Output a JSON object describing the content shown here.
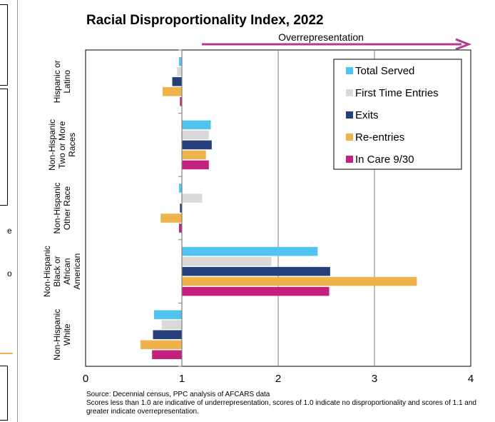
{
  "chart_data": {
    "type": "bar",
    "orientation": "horizontal",
    "title": "Racial Disproportionality Index, 2022",
    "annotation": "Overrepresentation",
    "categories": [
      "Hispanic or Latino",
      "Non-Hispanic Two or More Races",
      "Non-Hispanic Other Race",
      "Non-Hispanic Black or African American",
      "Non-Hispanic White"
    ],
    "category_lines": [
      [
        "Hispanic or",
        "Latino"
      ],
      [
        "Non-Hispanic",
        "Two or More",
        "Races"
      ],
      [
        "Non-Hispanic",
        "Other Race"
      ],
      [
        "Non-Hispanic",
        "Black or",
        "African",
        "American"
      ],
      [
        "Non-Hispanic",
        "White"
      ]
    ],
    "baseline": 1,
    "xlim": [
      0,
      4
    ],
    "xticks": [
      "0",
      "1",
      "2",
      "3",
      "4"
    ],
    "grid": true,
    "legend_position": "top-right",
    "series": [
      {
        "name": "Total Served",
        "color": "#4fc4f0",
        "values": [
          0.97,
          1.3,
          0.97,
          2.41,
          0.71
        ]
      },
      {
        "name": "First Time Entries",
        "color": "#d9d9d9",
        "values": [
          0.95,
          1.28,
          1.21,
          1.93,
          0.79
        ]
      },
      {
        "name": "Exits",
        "color": "#243f7a",
        "values": [
          0.9,
          1.31,
          0.98,
          2.54,
          0.7
        ]
      },
      {
        "name": "Re-entries",
        "color": "#f0b24a",
        "values": [
          0.8,
          1.25,
          0.78,
          3.44,
          0.57
        ]
      },
      {
        "name": "In Care 9/30",
        "color": "#c4207f",
        "values": [
          0.98,
          1.28,
          0.97,
          2.53,
          0.69
        ]
      }
    ],
    "arrow_color": "#b5398f"
  },
  "footnote": {
    "source": "Source: Decennial census, PPC analysis of AFCARS data",
    "note": "Scores less than 1.0 are indicative of underrepresentation, scores of 1.0 indicate no disproportionality and scores of 1.1 and greater indicate overrepresentation."
  },
  "left_fragment": {
    "chars": [
      "e",
      "o"
    ]
  }
}
